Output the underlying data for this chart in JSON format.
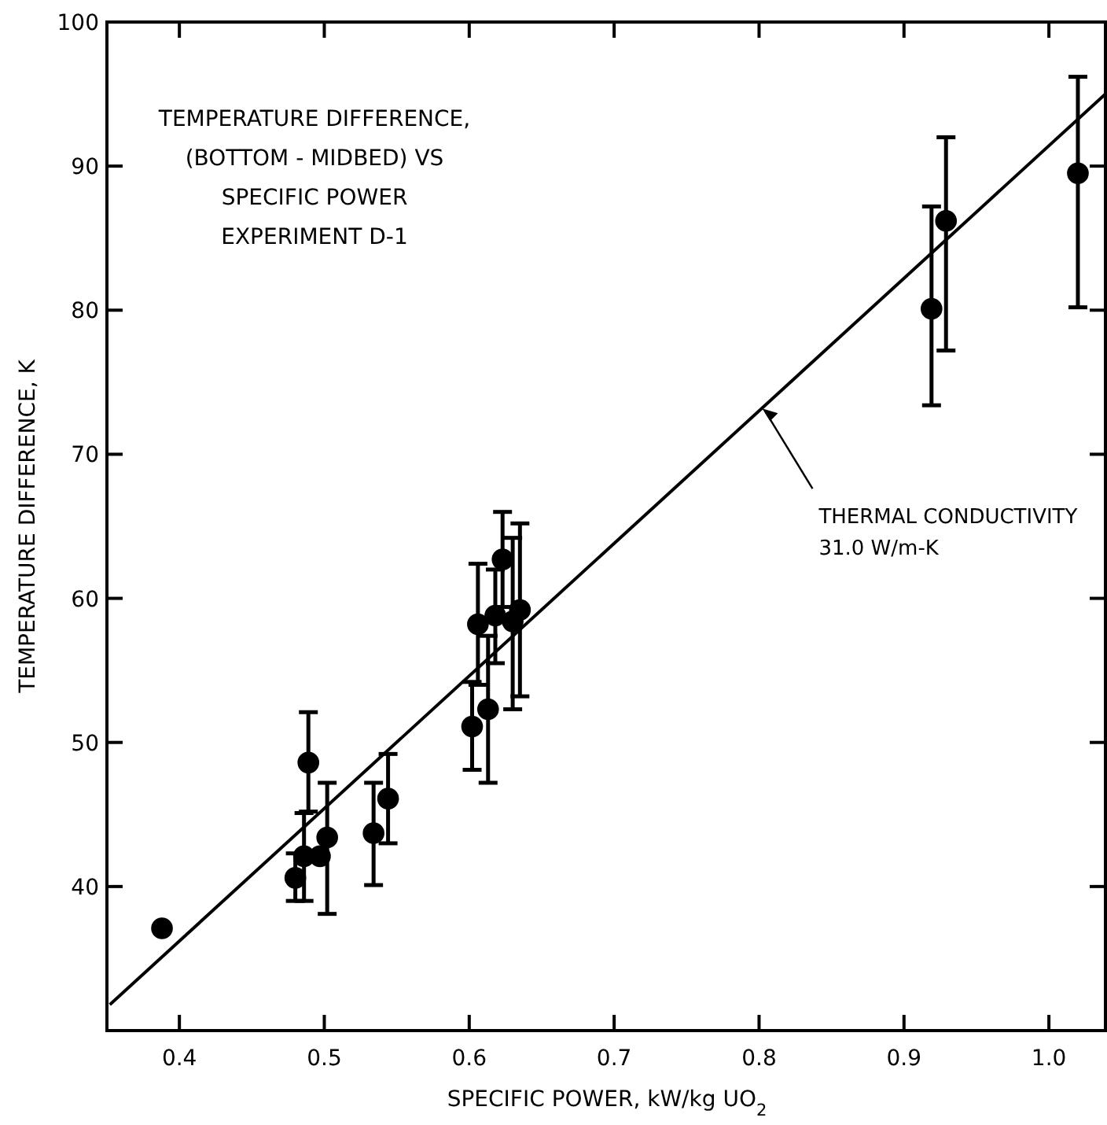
{
  "chart_data": {
    "type": "scatter",
    "title": "TEMPERATURE DIFFERENCE,\n(BOTTOM - MIDBED) VS\nSPECIFIC POWER\nEXPERIMENT D-1",
    "xlabel": "SPECIFIC POWER, kW/kg UO$_{2}$",
    "ylabel": "TEMPERATURE DIFFERENCE, K",
    "xlim": [
      0.35,
      1.039
    ],
    "ylim": [
      30,
      100
    ],
    "xticks": [
      0.4,
      0.5,
      0.6,
      0.7,
      0.8,
      0.9,
      {
        "value": 1.0,
        "label": "1.0"
      }
    ],
    "yticks": [
      40,
      50,
      60,
      70,
      80,
      90,
      100
    ],
    "grid": false,
    "marker": "circle",
    "series": [
      {
        "color": "#000000",
        "x": [
          0.388,
          0.48,
          0.489,
          0.486,
          0.497,
          0.502,
          0.534,
          0.544,
          0.602,
          0.613,
          0.606,
          0.618,
          0.623,
          0.63,
          0.635,
          0.919,
          0.929,
          1.02
        ],
        "values": [
          37.1,
          40.6,
          48.6,
          42.1,
          42.1,
          43.4,
          43.7,
          46.1,
          51.1,
          52.3,
          58.2,
          58.8,
          62.7,
          58.4,
          59.2,
          80.1,
          86.2,
          89.5
        ],
        "errors": [
          null,
          [
            39.0,
            42.3
          ],
          [
            45.2,
            52.1
          ],
          [
            39.0,
            45.1
          ],
          null,
          [
            38.1,
            47.2
          ],
          [
            40.1,
            47.2
          ],
          [
            43.0,
            49.2
          ],
          [
            48.1,
            54.2
          ],
          [
            47.2,
            57.4
          ],
          [
            54.0,
            62.4
          ],
          [
            55.5,
            62.0
          ],
          [
            59.4,
            66.0
          ],
          [
            52.3,
            64.2
          ],
          [
            53.2,
            65.2
          ],
          [
            73.4,
            87.2
          ],
          [
            77.2,
            92.0
          ],
          [
            80.2,
            96.2
          ]
        ]
      },
      {
        "type": "line",
        "color": "#000000",
        "line_style": "solid",
        "marker": "none",
        "x": [
          0.352,
          1.039
        ],
        "values": [
          31.8,
          95.0
        ]
      }
    ],
    "annotations": [
      {
        "text": "THERMAL CONDUCTIVITY\n31.0 W/m-K",
        "x": 0.8,
        "y": 73.4
      }
    ]
  }
}
